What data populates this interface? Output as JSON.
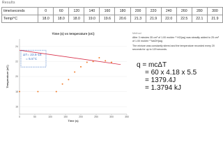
{
  "header": {
    "title": "Results"
  },
  "table": {
    "rows": [
      [
        "time/seconds",
        "0",
        "60",
        "120",
        "140",
        "160",
        "180",
        "200",
        "220",
        "240",
        "260",
        "280",
        "300"
      ],
      [
        "Temp/°C",
        "18.0",
        "18.0",
        "18.0",
        "19.0",
        "19.6",
        "20.6",
        "21.3",
        "21.9",
        "22.0",
        "22.5",
        "22.1",
        "21.9"
      ]
    ]
  },
  "chart": {
    "type": "scatter",
    "title": "Time (s) vs temperature (oC)",
    "x_label": "Time (s)",
    "y_label": "Temperature (oC)",
    "x": [
      0,
      60,
      120,
      140,
      160,
      180,
      200,
      220,
      240,
      260,
      280,
      300
    ],
    "y": [
      18.0,
      18.0,
      18.0,
      19.0,
      19.6,
      20.6,
      21.3,
      21.9,
      22.0,
      22.5,
      22.1,
      21.9
    ],
    "color": "#f07b2a",
    "trendline": {
      "x": [
        0,
        330
      ],
      "y": [
        23.5,
        21.6
      ],
      "color": "#d9304a"
    },
    "xlim": [
      0,
      350
    ],
    "ylim": [
      15,
      25
    ],
    "xticks": [
      0,
      50,
      100,
      150,
      200,
      250,
      300,
      350
    ],
    "yticks": [
      16,
      18,
      20,
      22,
      24
    ],
    "annotation": [
      "ΔT= 23.5-18",
      "= 5.5°C"
    ]
  },
  "method": {
    "heading": "Method",
    "paragraphs": [
      "After 3 minutes 35 cm³ of 1.00 moldm⁻³ HCl(aq) was steadily added to 25 cm³ of 1.00 moldm⁻³ NaOH(aq).",
      "The mixture was constantly stirred and the temperature recorded every 20 seconds for up to 120 seconds."
    ]
  },
  "calculation": [
    "q = mcΔT",
    "= 60 x 4.18 x 5.5",
    "= 1379.4J",
    "= 1.3794 kJ"
  ]
}
